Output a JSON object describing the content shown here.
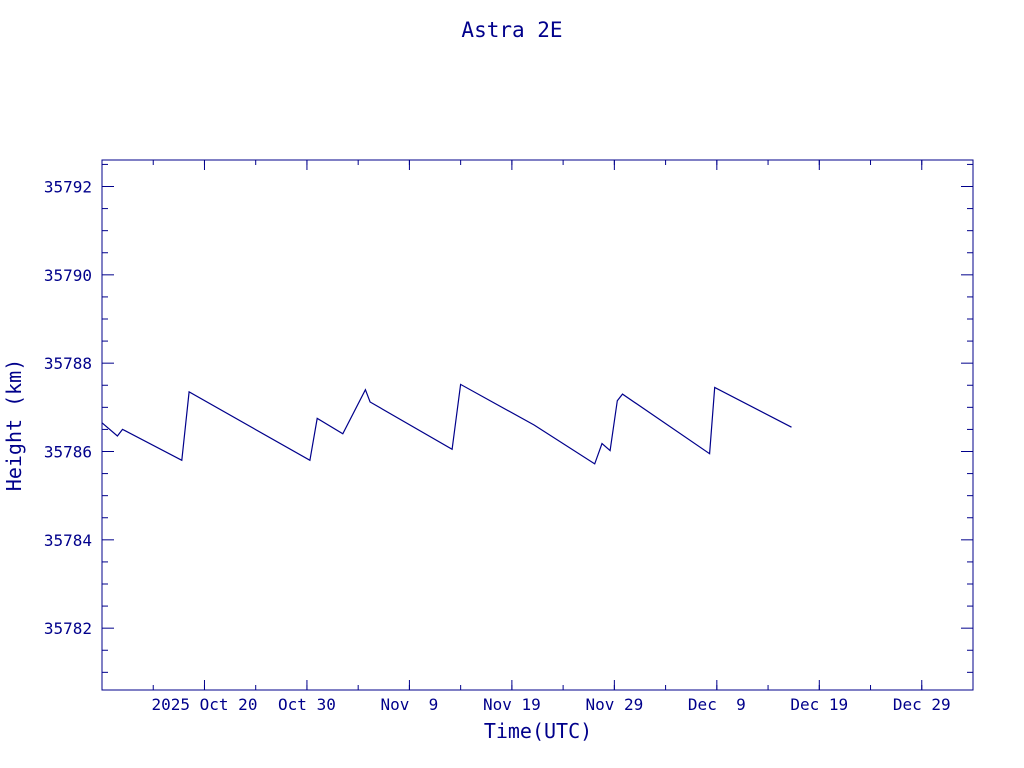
{
  "chart_data": {
    "type": "line",
    "title": "Astra 2E",
    "xlabel": "Time(UTC)",
    "ylabel": "Height (km)",
    "ylim": [
      35780.6,
      35792.6
    ],
    "xlim": [
      "2025-10-10T00:00",
      "2026-01-03T00:00"
    ],
    "yticks": [
      35782,
      35784,
      35786,
      35788,
      35790,
      35792
    ],
    "ytick_labels": [
      "35782",
      "35784",
      "35786",
      "35788",
      "35790",
      "35792"
    ],
    "xticks": [
      "2025-10-20",
      "2025-10-30",
      "2025-11-09",
      "2025-11-19",
      "2025-11-29",
      "2025-12-09",
      "2025-12-19",
      "2025-12-29"
    ],
    "xtick_labels": [
      "2025 Oct 20",
      "Oct 30",
      "Nov  9",
      "Nov 19",
      "Nov 29",
      "Dec  9",
      "Dec 19",
      "Dec 29"
    ],
    "grid": false,
    "color": "#00008b",
    "series": [
      {
        "x": [
          "2025-10-10T00:00",
          "2025-10-11T12:00",
          "2025-10-12T00:00",
          "2025-10-12T06:00",
          "2025-10-17T19:00",
          "2025-10-18T12:00",
          "2025-10-30T07:00",
          "2025-10-31T00:00",
          "2025-11-02T12:00",
          "2025-11-04T17:00",
          "2025-11-05T04:00",
          "2025-11-13T04:00",
          "2025-11-14T00:00",
          "2025-11-21T04:00",
          "2025-11-27T02:00",
          "2025-11-27T19:00",
          "2025-11-28T14:00",
          "2025-11-29T07:00",
          "2025-11-29T19:00",
          "2025-12-08T07:00",
          "2025-12-08T19:00",
          "2025-12-16T07:00"
        ],
        "y": [
          35786.65,
          35786.35,
          35786.5,
          35786.47,
          35785.8,
          35787.35,
          35785.8,
          35786.75,
          35786.4,
          35787.4,
          35787.12,
          35786.05,
          35787.52,
          35786.6,
          35785.72,
          35786.18,
          35786.02,
          35787.15,
          35787.3,
          35785.95,
          35787.45,
          35786.55
        ]
      }
    ]
  }
}
